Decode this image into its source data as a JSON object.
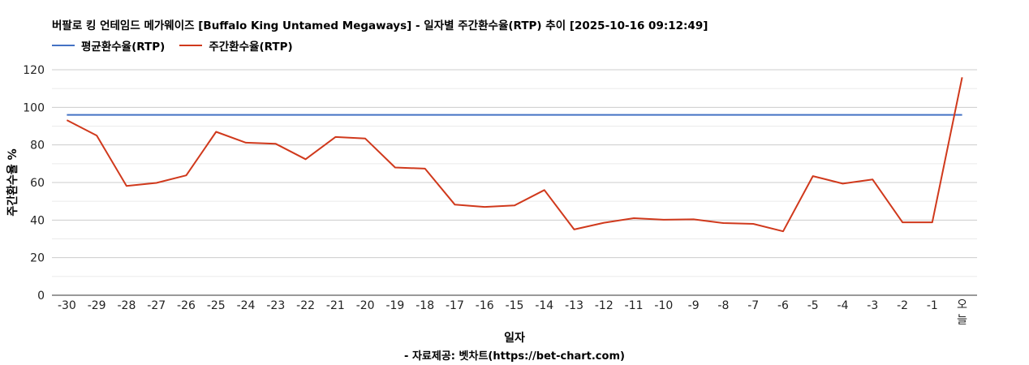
{
  "title": "버팔로 킹 언테임드 메가웨이즈 [Buffalo King Untamed Megaways] - 일자별 주간환수율(RTP) 추이 [2025-10-16 09:12:49]",
  "source": "- 자료제공: 벳차트(https://bet-chart.com)",
  "colors": {
    "avg": "#4472c4",
    "weekly": "#d0391c",
    "grid": "#cccccc",
    "axis": "#333333"
  },
  "chart_data": {
    "type": "line",
    "xlabel": "일자",
    "ylabel": "주간환수율 %",
    "ylim": [
      0,
      120
    ],
    "yticks": [
      0,
      20,
      40,
      60,
      80,
      100,
      120
    ],
    "minor_gridlines": true,
    "legend_position": "top-left",
    "categories": [
      "-30",
      "-29",
      "-28",
      "-27",
      "-26",
      "-25",
      "-24",
      "-23",
      "-22",
      "-21",
      "-20",
      "-19",
      "-18",
      "-17",
      "-16",
      "-15",
      "-14",
      "-13",
      "-12",
      "-11",
      "-10",
      "-9",
      "-8",
      "-7",
      "-6",
      "-5",
      "-4",
      "-3",
      "-2",
      "-1",
      "오늘"
    ],
    "series": [
      {
        "name": "평균환수율(RTP)",
        "color": "#4472c4",
        "values": [
          96,
          96,
          96,
          96,
          96,
          96,
          96,
          96,
          96,
          96,
          96,
          96,
          96,
          96,
          96,
          96,
          96,
          96,
          96,
          96,
          96,
          96,
          96,
          96,
          96,
          96,
          96,
          96,
          96,
          96,
          96
        ]
      },
      {
        "name": "주간환수율(RTP)",
        "color": "#d0391c",
        "values": [
          93.2,
          85,
          58.2,
          59.8,
          63.8,
          87,
          81.2,
          80.6,
          72.4,
          84.2,
          83.4,
          68,
          67.4,
          48.2,
          47,
          47.8,
          56,
          35,
          38.6,
          41,
          40.2,
          40.4,
          38.4,
          38,
          34,
          63.4,
          59.4,
          61.6,
          38.8,
          38.8,
          116
        ]
      }
    ]
  }
}
